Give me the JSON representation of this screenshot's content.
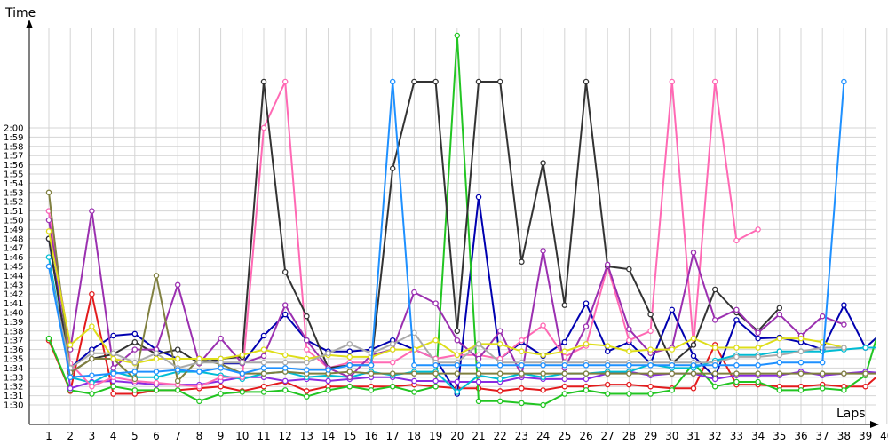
{
  "chart_data": {
    "type": "line",
    "ylabel": "Time",
    "xlabel": "Laps",
    "x": [
      1,
      2,
      3,
      4,
      5,
      6,
      7,
      8,
      9,
      10,
      11,
      12,
      13,
      14,
      15,
      16,
      17,
      18,
      19,
      20,
      21,
      22,
      23,
      24,
      25,
      26,
      27,
      28,
      29,
      30,
      31,
      32,
      33,
      34,
      35,
      36,
      37,
      38,
      39,
      40
    ],
    "y_unit": "seconds",
    "y_ticks": [
      "1:30",
      "1:31",
      "1:32",
      "1:33",
      "1:34",
      "1:35",
      "1:36",
      "1:37",
      "1:38",
      "1:39",
      "1:40",
      "1:41",
      "1:42",
      "1:43",
      "1:44",
      "1:45",
      "1:46",
      "1:47",
      "1:48",
      "1:49",
      "1:50",
      "1:51",
      "1:52",
      "1:53",
      "1:54",
      "1:55",
      "1:56",
      "1:57",
      "1:58",
      "1:59",
      "2:00"
    ],
    "ylim": [
      89,
      121
    ],
    "xlim": [
      0.5,
      40.5
    ],
    "grid": true,
    "series": [
      {
        "color": "#e31a1c",
        "values": [
          97,
          91.5,
          102,
          91.2,
          91.2,
          91.6,
          91.6,
          91.8,
          92,
          91.5,
          92,
          92.5,
          91.5,
          92,
          92,
          92,
          92,
          92.2,
          92,
          91.8,
          91.8,
          91.5,
          91.8,
          91.6,
          92,
          92,
          92.2,
          92.2,
          92,
          91.8,
          91.8,
          96.5,
          92.2,
          92.2,
          92,
          92,
          92.2,
          92,
          92,
          94
        ]
      },
      {
        "color": "#0000b0",
        "values": [
          108,
          94,
          96,
          97.5,
          97.7,
          96,
          95,
          95,
          94.5,
          94.5,
          97.5,
          99.8,
          97,
          95.8,
          95.8,
          96,
          97,
          96,
          95,
          91.2,
          112.5,
          95,
          96.8,
          95.3,
          96.8,
          101,
          95.8,
          96.8,
          94.5,
          100.3,
          95.3,
          93,
          99.2,
          97.2,
          97.3,
          96.8,
          96,
          100.8,
          96.2,
          98.3
        ]
      },
      {
        "color": "#22c522",
        "values": [
          97.2,
          91.6,
          91.2,
          92,
          91.6,
          91.6,
          91.6,
          90.4,
          91.2,
          91.4,
          91.4,
          91.6,
          90.9,
          91.6,
          92,
          91.6,
          92,
          91.4,
          92,
          130,
          90.4,
          90.4,
          90.2,
          90,
          91.2,
          91.6,
          91.2,
          91.2,
          91.2,
          91.6,
          94.5,
          92,
          92.5,
          92.5,
          91.6,
          91.6,
          91.8,
          91.6,
          93.2,
          101
        ]
      },
      {
        "color": "#8a2be2",
        "values": [
          111,
          91.8,
          92.5,
          92.6,
          92.4,
          92.2,
          92.2,
          92.2,
          92.6,
          93,
          93,
          92.6,
          92.8,
          92.6,
          92.8,
          93,
          93,
          92.6,
          92.6,
          92.5,
          92.5,
          92.5,
          93,
          92.8,
          92.8,
          92.8,
          93.4,
          93.6,
          93.2,
          93.4,
          93.4,
          92.8,
          93.2,
          93.2,
          93.2,
          93.6,
          93.2,
          93.4,
          93.6,
          93.4
        ]
      },
      {
        "color": "#00bcd4",
        "values": [
          106,
          93,
          92.4,
          93.6,
          93,
          93,
          93.6,
          93.6,
          93.2,
          92.8,
          93.4,
          93.6,
          93,
          93.2,
          93,
          93.6,
          93.2,
          93.6,
          93.6,
          91.4,
          93.2,
          92.8,
          93.4,
          93,
          93.4,
          93.4,
          93.6,
          93.6,
          94.4,
          94,
          94,
          94.8,
          95.4,
          95.4,
          95.8,
          95.8,
          95.8,
          96,
          96.2,
          96.2
        ]
      },
      {
        "color": "#ff69b4",
        "values": [
          111,
          94.5,
          92,
          93,
          92.6,
          92.4,
          92.2,
          92,
          93,
          93,
          120,
          125,
          96,
          94,
          94.6,
          94.6,
          94.6,
          96,
          95,
          95.4,
          95.4,
          95,
          97,
          98.6,
          95.2,
          96.4,
          105,
          97,
          98,
          125,
          96.5,
          125,
          107.8,
          109,
          null,
          null,
          null,
          null,
          null,
          null
        ]
      },
      {
        "color": "#333333",
        "values": [
          108,
          93.5,
          95,
          95.5,
          96.8,
          95.5,
          96,
          94.5,
          95,
          95.2,
          125,
          104.4,
          99.6,
          94,
          94.3,
          94.3,
          115.6,
          125,
          125,
          98,
          125,
          125,
          105.5,
          116.2,
          100.8,
          125,
          105,
          104.7,
          99.8,
          94.5,
          96.5,
          102.5,
          100,
          98,
          100.5,
          null,
          null,
          null,
          null,
          null
        ]
      },
      {
        "color": "#9b30b0",
        "values": [
          110,
          96,
          111,
          94,
          96,
          96,
          103,
          94.5,
          97.2,
          94.5,
          95.3,
          100.8,
          97,
          94,
          93,
          95.4,
          96,
          102.2,
          101,
          97,
          95,
          98,
          93.2,
          106.7,
          94,
          98.5,
          105.2,
          98.2,
          95.6,
          96.2,
          106.5,
          99.2,
          100.3,
          97.8,
          99.8,
          97.5,
          99.6,
          98.7,
          null,
          null
        ]
      },
      {
        "color": "#808040",
        "values": [
          113,
          93.5,
          95,
          95,
          92.8,
          104,
          92.6,
          95,
          94.4,
          93.4,
          93.4,
          93.6,
          93.4,
          93.4,
          93.6,
          93.4,
          93.4,
          93.4,
          93.4,
          93.4,
          93.4,
          93.4,
          93.4,
          93.4,
          93.4,
          93.4,
          93.4,
          93.4,
          93.4,
          93.4,
          93.4,
          93.4,
          93.4,
          93.4,
          93.4,
          93.4,
          93.4,
          93.4,
          93.4,
          93.4
        ]
      },
      {
        "color": "#dede1a",
        "values": [
          108.8,
          96.5,
          98.5,
          95,
          94.5,
          95,
          95,
          95,
          95,
          95.4,
          96,
          95.4,
          95,
          95.4,
          95.2,
          95.2,
          96,
          96,
          97,
          95.4,
          96.6,
          96.6,
          95.8,
          95.4,
          95.8,
          96.6,
          96.4,
          95.8,
          96,
          96,
          97.2,
          96.2,
          96.2,
          96.2,
          97.2,
          97.2,
          96.8,
          96.2,
          null,
          null
        ]
      },
      {
        "color": "#aaaaaa",
        "values": [
          105,
          94,
          95.6,
          95.6,
          94.6,
          95.6,
          94,
          94.6,
          94.6,
          94.6,
          94.6,
          94.6,
          94.6,
          95.6,
          96.6,
          95.6,
          96.6,
          97.8,
          94.6,
          94.6,
          96.6,
          94.6,
          94.6,
          94.6,
          94.6,
          94.6,
          94.6,
          94.6,
          94.6,
          94.6,
          94.6,
          94.6,
          95.2,
          95.2,
          95.4,
          95.8,
          96.2,
          96.2,
          null,
          null
        ]
      },
      {
        "color": "#1e90ff",
        "values": [
          105,
          93,
          93.2,
          93.4,
          93.6,
          93.6,
          93.8,
          93.6,
          94,
          93.4,
          94,
          94,
          93.8,
          93.8,
          94.3,
          94.3,
          125,
          94.3,
          94.3,
          94.3,
          94.3,
          94.3,
          94.3,
          94.3,
          94.3,
          94.3,
          94.3,
          94.3,
          94.3,
          94.3,
          94.3,
          94.3,
          94.3,
          94.3,
          94.6,
          94.6,
          94.6,
          125,
          null,
          null
        ]
      }
    ]
  }
}
